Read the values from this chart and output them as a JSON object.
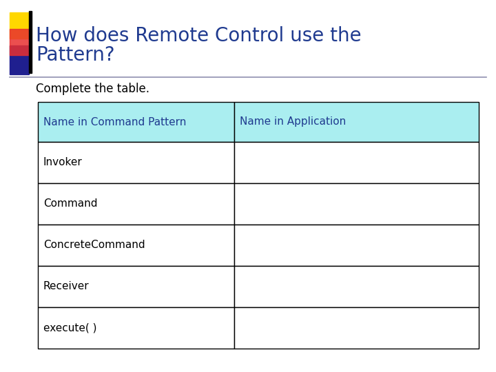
{
  "title_line1": "How does Remote Control use the",
  "title_line2": "Pattern?",
  "subtitle": "Complete the table.",
  "title_color": "#1F3A8F",
  "subtitle_color": "#000000",
  "background_color": "#FFFFFF",
  "header_bg_color": "#AAEEF0",
  "header_text_color": "#1F3A8F",
  "cell_bg_color": "#FFFFFF",
  "cell_text_color": "#000000",
  "border_color": "#000000",
  "columns": [
    "Name in Command Pattern",
    "Name in Application"
  ],
  "rows": [
    "Invoker",
    "Command",
    "ConcreteCommand",
    "Receiver",
    "execute( )"
  ],
  "accent_yellow": "#FFD700",
  "accent_red": "#E83030",
  "accent_blue": "#1F1F8F",
  "divider_color": "#9090B0",
  "title_fontsize": 20,
  "subtitle_fontsize": 12,
  "header_fontsize": 11,
  "cell_fontsize": 11
}
